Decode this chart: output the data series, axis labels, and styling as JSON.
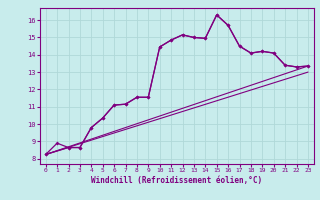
{
  "xlabel": "Windchill (Refroidissement éolien,°C)",
  "bg_color": "#c8ecec",
  "grid_color": "#b0d8d8",
  "line_color": "#800080",
  "xlim": [
    -0.5,
    23.5
  ],
  "ylim": [
    7.7,
    16.7
  ],
  "yticks": [
    8,
    9,
    10,
    11,
    12,
    13,
    14,
    15,
    16
  ],
  "xticks": [
    0,
    1,
    2,
    3,
    4,
    5,
    6,
    7,
    8,
    9,
    10,
    11,
    12,
    13,
    14,
    15,
    16,
    17,
    18,
    19,
    20,
    21,
    22,
    23
  ],
  "line1_x": [
    0,
    1,
    2,
    3,
    4,
    5,
    6,
    7,
    8,
    9,
    10,
    11,
    12,
    13,
    14,
    15,
    16,
    17,
    18,
    19,
    20,
    21,
    22,
    23
  ],
  "line1_y": [
    8.25,
    8.9,
    8.65,
    8.65,
    9.8,
    10.35,
    11.1,
    11.15,
    11.55,
    11.55,
    14.45,
    14.85,
    15.15,
    15.0,
    14.95,
    16.3,
    15.7,
    14.5,
    14.1,
    14.2,
    14.1,
    13.4,
    13.3,
    13.35
  ],
  "line2_x": [
    0,
    2,
    3,
    4,
    5,
    6,
    7,
    8,
    9,
    10,
    11,
    12,
    13,
    14,
    15,
    16,
    17,
    18,
    19,
    20,
    21,
    22,
    23
  ],
  "line2_y": [
    8.25,
    8.65,
    8.65,
    9.8,
    10.35,
    11.1,
    11.15,
    11.55,
    11.55,
    14.45,
    14.85,
    15.15,
    15.0,
    14.95,
    16.3,
    15.7,
    14.5,
    14.1,
    14.2,
    14.1,
    13.4,
    13.3,
    13.35
  ],
  "line3_x": [
    0,
    23
  ],
  "line3_y": [
    8.25,
    13.35
  ],
  "line4_x": [
    0,
    23
  ],
  "line4_y": [
    8.25,
    13.0
  ]
}
